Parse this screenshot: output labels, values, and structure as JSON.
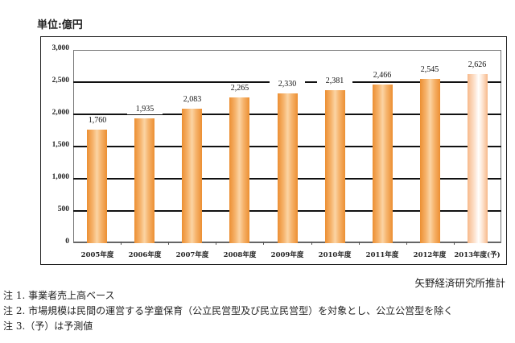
{
  "unit_label": "単位:億円",
  "source": "矢野経済研究所推計",
  "notes": [
    "注 1. 事業者売上高ベース",
    "注 2. 市場規模は民間の運営する学童保育（公立民営型及び民立民営型）を対象とし、公立公営型を除く",
    "注 3.（予）は予測値"
  ],
  "colors": {
    "bar": "#f0a050",
    "forecast_bar": "#fde3cf",
    "gridline": "#111111"
  },
  "chart_data": {
    "type": "bar",
    "title": "",
    "xlabel": "",
    "ylabel": "単位:億円",
    "ylim": [
      0,
      3000
    ],
    "yticks": [
      "0",
      "500",
      "1,000",
      "1,500",
      "2,000",
      "2,500",
      "3,000"
    ],
    "grid": true,
    "legend": "none",
    "categories": [
      "2005年度",
      "2006年度",
      "2007年度",
      "2008年度",
      "2009年度",
      "2010年度",
      "2011年度",
      "2012年度",
      "2013年度(予)"
    ],
    "values": [
      1760,
      1935,
      2083,
      2265,
      2330,
      2381,
      2466,
      2545,
      2626
    ],
    "value_labels": [
      "1,760",
      "1,935",
      "2,083",
      "2,265",
      "2,330",
      "2,381",
      "2,466",
      "2,545",
      "2,626"
    ],
    "forecast_index": 8
  }
}
